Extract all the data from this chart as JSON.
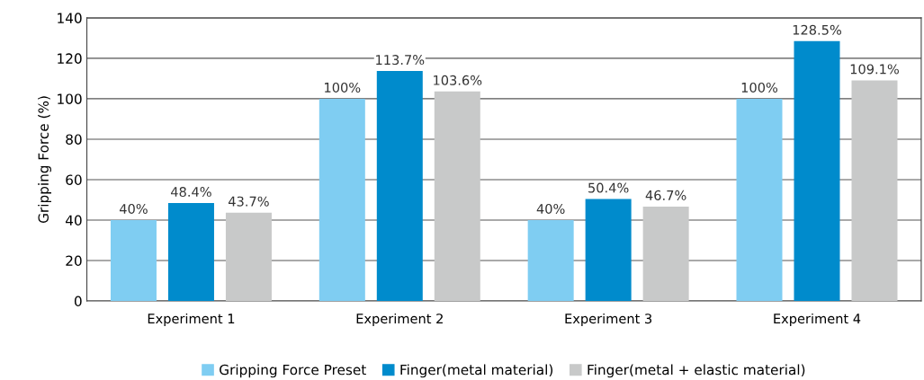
{
  "chart_data": {
    "type": "bar",
    "ylabel": "Gripping Force (%)",
    "categories": [
      "Experiment 1",
      "Experiment 2",
      "Experiment 3",
      "Experiment 4"
    ],
    "series": [
      {
        "name": "Gripping Force Preset",
        "color": "#7fcdf2",
        "values": [
          40,
          100,
          40,
          100
        ],
        "value_labels": [
          "40%",
          "100%",
          "40%",
          "100%"
        ]
      },
      {
        "name": "Finger(metal material)",
        "color": "#008bcc",
        "values": [
          48.4,
          113.7,
          50.4,
          128.5
        ],
        "value_labels": [
          "48.4%",
          "113.7%",
          "50.4%",
          "128.5%"
        ]
      },
      {
        "name": "Finger(metal + elastic material)",
        "color": "#c8c9c9",
        "values": [
          43.7,
          103.6,
          46.7,
          109.1
        ],
        "value_labels": [
          "43.7%",
          "103.6%",
          "46.7%",
          "109.1%"
        ]
      }
    ],
    "ylim": [
      0,
      140
    ],
    "yticks": [
      0,
      20,
      40,
      60,
      80,
      100,
      120,
      140
    ],
    "grid": "y",
    "legend": "bottom"
  }
}
